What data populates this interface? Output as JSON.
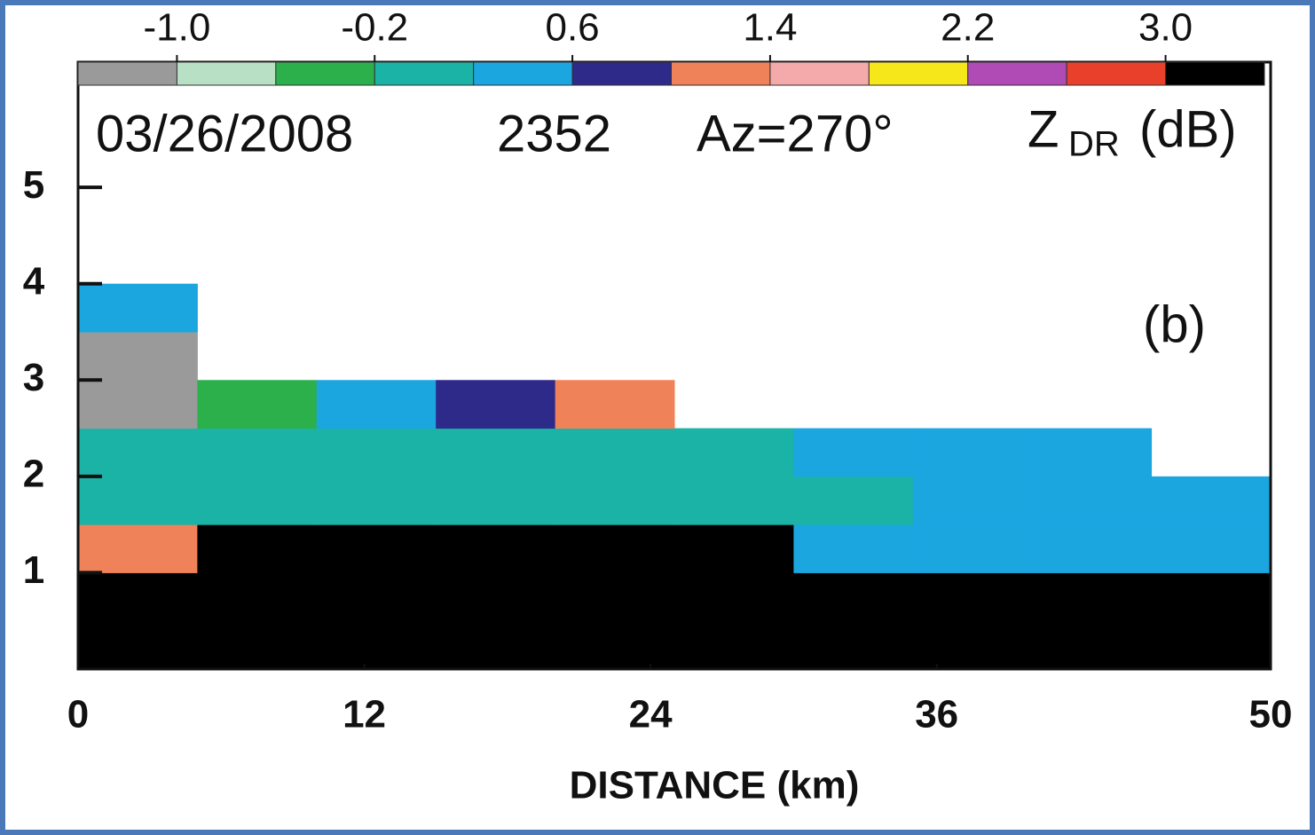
{
  "chart_data": {
    "type": "heatmap",
    "date": "03/26/2008",
    "time": "2352",
    "azimuth": "Az=270°",
    "variable": "Z",
    "variable_sub": "DR",
    "unit": "(dB)",
    "panel": "(b)",
    "x_label": "DISTANCE  (km)",
    "xlim": [
      0,
      50
    ],
    "xticks": [
      0,
      12,
      24,
      36,
      50
    ],
    "ylim": [
      0,
      6.3
    ],
    "yticks": [
      1,
      2,
      3,
      4,
      5
    ],
    "xbins": [
      0,
      5,
      10,
      15,
      20,
      25,
      30,
      35,
      40,
      45,
      50
    ],
    "ybins": [
      0,
      0.5,
      1,
      1.5,
      2,
      2.5,
      3,
      3.5,
      4
    ],
    "values": [
      [
        3.5,
        3.5,
        3.5,
        3.5,
        3.5,
        3.5,
        3.5,
        3.5,
        3.5,
        3.5
      ],
      [
        3.5,
        3.5,
        3.5,
        3.5,
        3.5,
        3.5,
        3.5,
        3.5,
        3.5,
        3.5
      ],
      [
        1.2,
        3.5,
        3.5,
        3.5,
        3.5,
        3.5,
        0.3,
        0.3,
        0.4,
        0.3
      ],
      [
        0.0,
        0.1,
        0.1,
        0.1,
        0.1,
        0.1,
        0.1,
        0.2,
        0.3,
        0.3
      ],
      [
        0.0,
        -0.1,
        -0.1,
        0.0,
        0.0,
        0.0,
        0.2,
        0.4,
        0.5,
        null
      ],
      [
        -1.2,
        -0.3,
        0.5,
        0.8,
        1.2,
        null,
        null,
        null,
        null,
        null
      ],
      [
        -1.2,
        null,
        null,
        null,
        null,
        null,
        null,
        null,
        null,
        null
      ],
      [
        0.5,
        null,
        null,
        null,
        null,
        null,
        null,
        null,
        null,
        null
      ]
    ],
    "colorbar": {
      "lim": [
        -1.4,
        3.4
      ],
      "ticks": [
        {
          "value": -1,
          "label": "-1.0"
        },
        -0.2,
        0.6,
        1.4,
        2.2,
        {
          "value": 3,
          "label": "3.0"
        }
      ],
      "colors": [
        "#9a9a9a",
        "#b8e0c4",
        "#2bb04c",
        "#1bb3a6",
        "#1ba6e0",
        "#2e2a8a",
        "#f0825a",
        "#f4aaaa",
        "#f6e71a",
        "#b04ab4",
        "#e8402a",
        "#000000"
      ]
    }
  }
}
